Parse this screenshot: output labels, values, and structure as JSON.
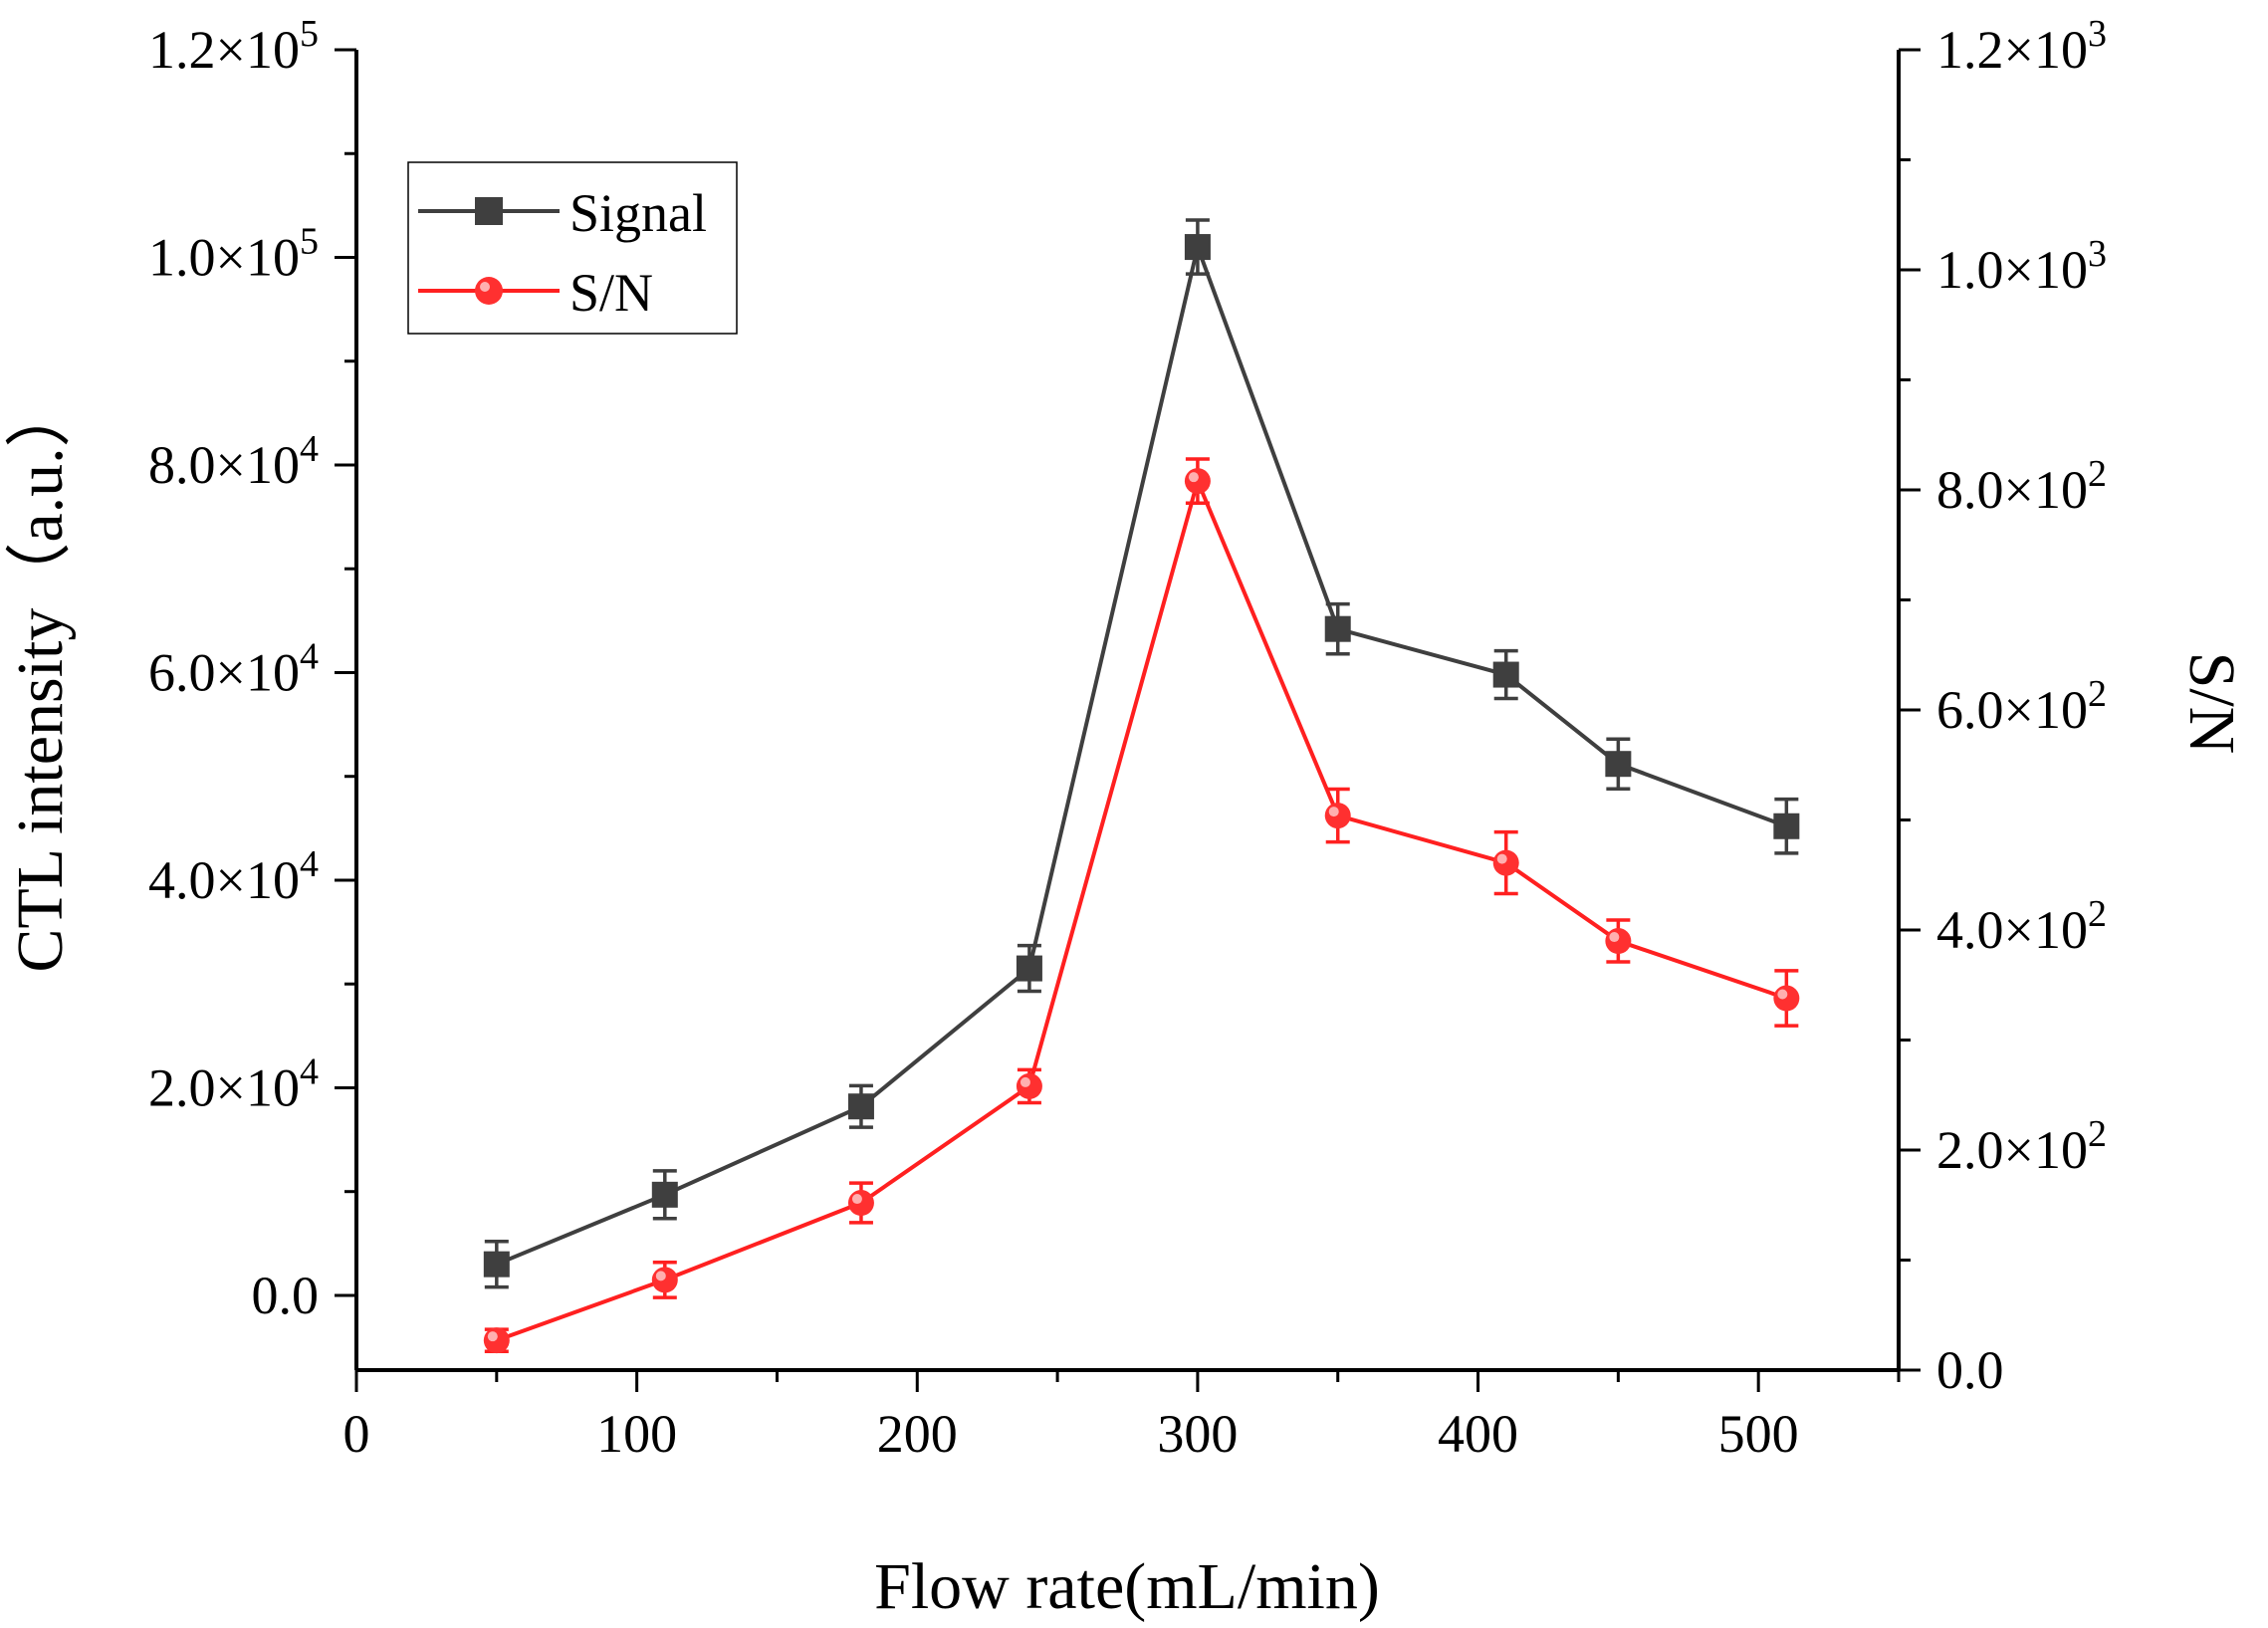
{
  "chart_data": {
    "type": "line",
    "title": "",
    "xlabel": "Flow rate(mL/min)",
    "ylabel": "CTL intensity（a.u.）",
    "y2label": "S/N",
    "xlim": [
      0,
      550
    ],
    "ylim": [
      -7200,
      120000
    ],
    "y2lim": [
      0,
      1200
    ],
    "x_ticks": [
      {
        "value": 0,
        "label": "0"
      },
      {
        "value": 100,
        "label": "100"
      },
      {
        "value": 200,
        "label": "200"
      },
      {
        "value": 300,
        "label": "300"
      },
      {
        "value": 400,
        "label": "400"
      },
      {
        "value": 500,
        "label": "500"
      }
    ],
    "y_ticks": [
      {
        "value": 0,
        "mant": "0.0",
        "exp": ""
      },
      {
        "value": 20000,
        "mant": "2.0×10",
        "exp": "4"
      },
      {
        "value": 40000,
        "mant": "4.0×10",
        "exp": "4"
      },
      {
        "value": 60000,
        "mant": "6.0×10",
        "exp": "4"
      },
      {
        "value": 80000,
        "mant": "8.0×10",
        "exp": "4"
      },
      {
        "value": 100000,
        "mant": "1.0×10",
        "exp": "5"
      },
      {
        "value": 120000,
        "mant": "1.2×10",
        "exp": "5"
      }
    ],
    "y2_ticks": [
      {
        "value": 0,
        "mant": "0.0",
        "exp": ""
      },
      {
        "value": 200,
        "mant": "2.0×10",
        "exp": "2"
      },
      {
        "value": 400,
        "mant": "4.0×10",
        "exp": "2"
      },
      {
        "value": 600,
        "mant": "6.0×10",
        "exp": "2"
      },
      {
        "value": 800,
        "mant": "8.0×10",
        "exp": "2"
      },
      {
        "value": 1000,
        "mant": "1.0×10",
        "exp": "3"
      },
      {
        "value": 1200,
        "mant": "1.2×10",
        "exp": "3"
      }
    ],
    "x": [
      50,
      110,
      180,
      240,
      300,
      350,
      410,
      450,
      510
    ],
    "series": [
      {
        "name": "Signal",
        "axis": "left",
        "color": "#3f3f3f",
        "marker": "square",
        "values": [
          3000,
          9700,
          18200,
          31500,
          101000,
          64200,
          59800,
          51200,
          45200
        ],
        "errors": [
          2200,
          2300,
          2000,
          2200,
          2600,
          2400,
          2300,
          2400,
          2600
        ]
      },
      {
        "name": "S/N",
        "axis": "right",
        "color": "#ff2020",
        "marker": "circle",
        "values": [
          27,
          82,
          152,
          258,
          808,
          504,
          461,
          390,
          338
        ],
        "errors": [
          10,
          16,
          18,
          15,
          20,
          24,
          28,
          19,
          25
        ]
      }
    ],
    "legend": {
      "position": "top-left",
      "entries": [
        "Signal",
        "S/N"
      ]
    }
  }
}
